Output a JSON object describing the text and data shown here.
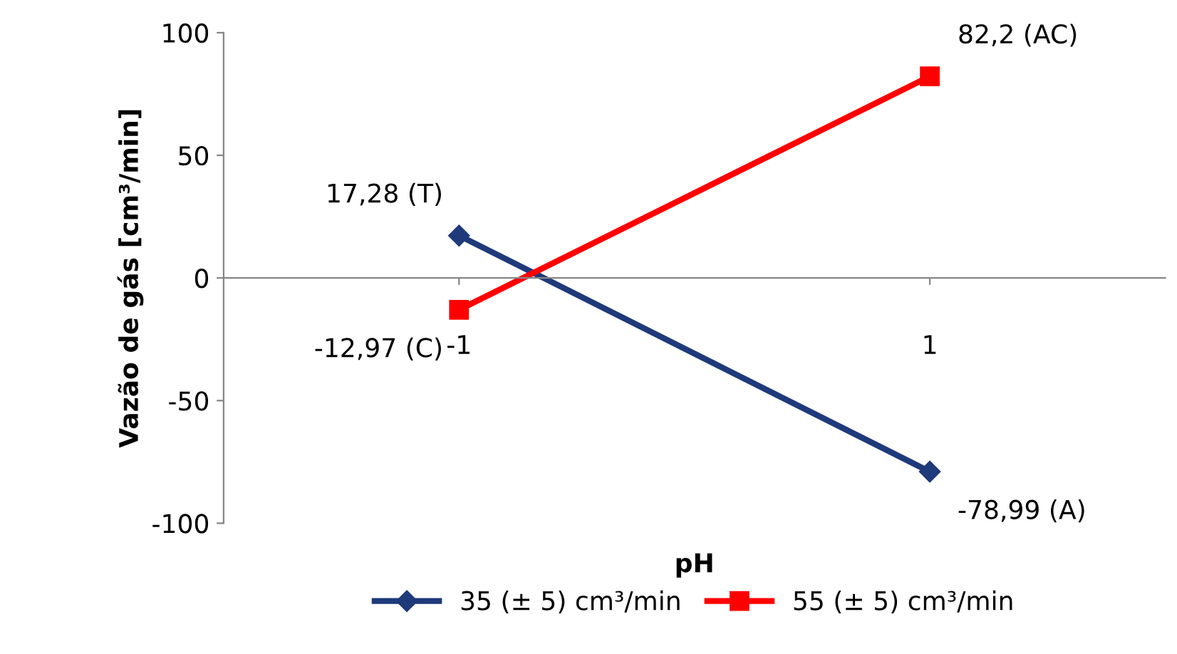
{
  "chart_data": {
    "type": "line",
    "xlabel": "pH",
    "ylabel": "Vazão de gás [cm³/min]",
    "categories": [
      "-1",
      "1"
    ],
    "series": [
      {
        "name": "35 (± 5) cm³/min",
        "color": "#1f3a7a",
        "marker": "diamond",
        "values": [
          17.28,
          -78.99
        ],
        "value_labels": [
          "17,28 (T)",
          "-78,99 (A)"
        ]
      },
      {
        "name": "55 (± 5) cm³/min",
        "color": "#ff0000",
        "marker": "square",
        "values": [
          -12.97,
          82.2
        ],
        "value_labels": [
          "-12,97 (C)",
          "82,2 (AC)"
        ]
      }
    ],
    "ylim": [
      -100,
      100
    ],
    "yticks": [
      -100,
      -50,
      0,
      50,
      100
    ],
    "grid": false,
    "legend": "bottom",
    "line_style": "solid"
  }
}
